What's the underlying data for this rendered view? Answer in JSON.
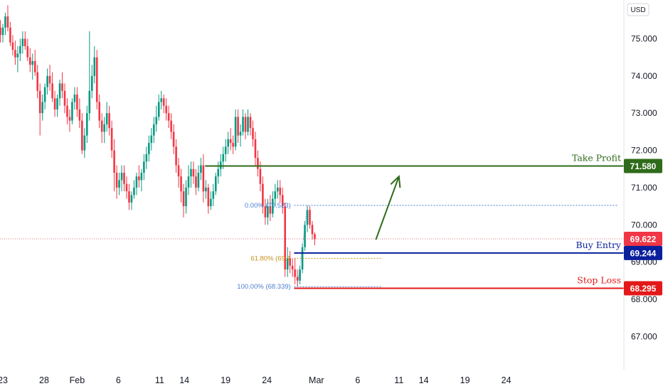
{
  "chart_data": {
    "type": "candlestick",
    "currency": "USD",
    "ylim": [
      66.4,
      75.9
    ],
    "y_ticks": [
      "75.000",
      "74.000",
      "73.000",
      "72.000",
      "71.000",
      "70.000",
      "69.000",
      "68.000",
      "67.000"
    ],
    "x_ticks": [
      "23",
      "28",
      "Feb",
      "6",
      "11",
      "14",
      "19",
      "24",
      "Mar",
      "6",
      "11",
      "14",
      "19",
      "24"
    ],
    "x_tick_positions_in_days": [
      0,
      5,
      9,
      14,
      19,
      22,
      27,
      32,
      38,
      43,
      48,
      51,
      56,
      61
    ],
    "last_price": "69.622",
    "levels": [
      {
        "name": "Take Profit",
        "value": 71.58,
        "badge": "71.580",
        "color": "#2e6b1a",
        "start_day": 24.5
      },
      {
        "name": "Buy Entry",
        "value": 69.244,
        "badge": "69.244",
        "color": "#0a1f9c",
        "start_day": 35.3
      },
      {
        "name": "Stop Loss",
        "value": 68.295,
        "badge": "68.295",
        "color": "#e31919",
        "start_day": 35.3
      }
    ],
    "fibonacci": [
      {
        "label": "0.00% (70.523)",
        "value": 70.523,
        "color": "#4a7fd0"
      },
      {
        "label": "61.80% (69.1",
        "value": 69.1,
        "color": "#c8911a"
      },
      {
        "label": "100.00% (68.339)",
        "value": 68.339,
        "color": "#4a7fd0"
      }
    ],
    "arrow": {
      "from_day": 45.2,
      "from_value": 69.6,
      "to_day": 48.0,
      "to_value": 71.3,
      "color": "#2e6b1a"
    },
    "candles": [
      [
        -0.9,
        75.5,
        75.85,
        75.3,
        75.65
      ],
      [
        -0.6,
        75.6,
        75.8,
        75.2,
        75.3
      ],
      [
        -0.3,
        75.3,
        75.5,
        74.9,
        75.1
      ],
      [
        0.0,
        75.1,
        75.4,
        74.9,
        75.3
      ],
      [
        0.3,
        75.3,
        75.7,
        75.1,
        75.6
      ],
      [
        0.6,
        75.6,
        75.9,
        75.2,
        75.3
      ],
      [
        0.9,
        75.3,
        75.45,
        74.8,
        74.9
      ],
      [
        1.2,
        74.9,
        75.1,
        74.55,
        74.7
      ],
      [
        1.5,
        74.7,
        74.95,
        74.3,
        74.5
      ],
      [
        1.8,
        74.5,
        74.8,
        74.1,
        74.6
      ],
      [
        2.1,
        74.6,
        75.0,
        74.4,
        74.8
      ],
      [
        2.4,
        74.8,
        75.2,
        74.6,
        75.0
      ],
      [
        2.7,
        75.0,
        75.2,
        74.7,
        74.8
      ],
      [
        3.0,
        74.8,
        75.0,
        74.4,
        74.5
      ],
      [
        3.3,
        74.5,
        74.75,
        74.1,
        74.3
      ],
      [
        3.6,
        74.3,
        74.6,
        73.9,
        74.4
      ],
      [
        3.9,
        74.4,
        74.7,
        74.0,
        74.1
      ],
      [
        4.2,
        74.1,
        74.3,
        73.4,
        73.6
      ],
      [
        4.5,
        73.6,
        73.8,
        72.4,
        73.0
      ],
      [
        4.8,
        73.0,
        73.5,
        72.8,
        73.3
      ],
      [
        5.1,
        73.3,
        73.8,
        73.1,
        73.7
      ],
      [
        5.4,
        73.7,
        74.2,
        73.5,
        74.0
      ],
      [
        5.7,
        74.0,
        74.3,
        73.6,
        73.8
      ],
      [
        6.0,
        73.8,
        74.1,
        73.3,
        73.4
      ],
      [
        6.3,
        73.4,
        73.6,
        72.9,
        73.1
      ],
      [
        6.6,
        73.1,
        73.5,
        72.9,
        73.4
      ],
      [
        6.9,
        73.4,
        73.9,
        73.2,
        73.8
      ],
      [
        7.2,
        73.8,
        74.1,
        73.4,
        73.6
      ],
      [
        7.5,
        73.6,
        73.8,
        73.0,
        73.2
      ],
      [
        7.8,
        73.2,
        73.4,
        72.7,
        72.9
      ],
      [
        8.1,
        72.9,
        73.1,
        72.5,
        72.8
      ],
      [
        8.4,
        72.8,
        73.4,
        72.7,
        73.3
      ],
      [
        8.7,
        73.3,
        73.7,
        73.1,
        73.5
      ],
      [
        9.0,
        73.5,
        73.7,
        72.9,
        73.1
      ],
      [
        9.3,
        73.1,
        73.4,
        72.6,
        72.8
      ],
      [
        9.6,
        72.8,
        73.0,
        71.9,
        72.0
      ],
      [
        9.9,
        72.0,
        72.6,
        71.8,
        72.4
      ],
      [
        10.2,
        72.4,
        73.2,
        72.2,
        73.0
      ],
      [
        10.5,
        73.0,
        75.2,
        72.8,
        73.6
      ],
      [
        10.8,
        73.6,
        74.3,
        73.4,
        74.0
      ],
      [
        11.1,
        74.0,
        74.8,
        73.8,
        74.5
      ],
      [
        11.4,
        74.5,
        74.7,
        73.1,
        73.3
      ],
      [
        11.7,
        73.3,
        73.5,
        72.6,
        72.8
      ],
      [
        12.0,
        72.8,
        73.0,
        72.2,
        72.5
      ],
      [
        12.3,
        72.5,
        72.9,
        72.2,
        72.7
      ],
      [
        12.6,
        72.7,
        73.3,
        72.5,
        73.0
      ],
      [
        12.9,
        73.0,
        73.2,
        72.4,
        72.6
      ],
      [
        13.2,
        72.6,
        72.8,
        71.8,
        72.0
      ],
      [
        13.5,
        72.0,
        72.3,
        70.9,
        71.4
      ],
      [
        13.8,
        71.4,
        71.6,
        70.7,
        71.0
      ],
      [
        14.1,
        71.0,
        71.4,
        70.8,
        71.2
      ],
      [
        14.4,
        71.2,
        71.6,
        70.9,
        71.4
      ],
      [
        14.7,
        71.4,
        71.6,
        70.9,
        71.1
      ],
      [
        15.0,
        71.1,
        71.3,
        70.7,
        70.9
      ],
      [
        15.3,
        70.9,
        71.1,
        70.4,
        70.6
      ],
      [
        15.6,
        70.6,
        70.9,
        70.4,
        70.8
      ],
      [
        15.9,
        70.8,
        71.2,
        70.7,
        71.0
      ],
      [
        16.2,
        71.0,
        71.4,
        70.8,
        71.3
      ],
      [
        16.5,
        71.3,
        71.6,
        71.0,
        71.2
      ],
      [
        16.8,
        71.2,
        71.5,
        70.9,
        71.4
      ],
      [
        17.1,
        71.4,
        71.9,
        71.2,
        71.7
      ],
      [
        17.4,
        71.7,
        72.1,
        71.5,
        71.9
      ],
      [
        17.7,
        71.9,
        72.4,
        71.7,
        72.2
      ],
      [
        18.0,
        72.2,
        72.6,
        72.0,
        72.4
      ],
      [
        18.3,
        72.4,
        72.9,
        72.2,
        72.7
      ],
      [
        18.6,
        72.7,
        73.2,
        72.5,
        72.9
      ],
      [
        18.9,
        72.9,
        73.5,
        72.8,
        73.3
      ],
      [
        19.2,
        73.3,
        73.6,
        73.1,
        73.4
      ],
      [
        19.5,
        73.4,
        73.5,
        73.0,
        73.2
      ],
      [
        19.8,
        73.2,
        73.4,
        72.8,
        73.0
      ],
      [
        20.1,
        73.0,
        73.2,
        72.6,
        72.8
      ],
      [
        20.4,
        72.8,
        73.0,
        72.3,
        72.5
      ],
      [
        20.7,
        72.5,
        72.7,
        71.9,
        72.1
      ],
      [
        21.0,
        72.1,
        72.3,
        71.4,
        71.6
      ],
      [
        21.3,
        71.6,
        71.8,
        71.0,
        71.3
      ],
      [
        21.6,
        71.3,
        71.5,
        70.6,
        70.9
      ],
      [
        21.9,
        70.9,
        71.1,
        70.2,
        70.5
      ],
      [
        22.2,
        70.5,
        71.2,
        70.3,
        71.0
      ],
      [
        22.5,
        71.0,
        71.6,
        70.8,
        71.3
      ],
      [
        22.8,
        71.3,
        71.7,
        71.0,
        71.5
      ],
      [
        23.1,
        71.5,
        71.7,
        71.1,
        71.3
      ],
      [
        23.4,
        71.3,
        71.5,
        70.8,
        71.0
      ],
      [
        23.7,
        71.0,
        71.6,
        70.9,
        71.4
      ],
      [
        24.0,
        71.4,
        71.8,
        71.2,
        71.6
      ],
      [
        24.3,
        71.6,
        71.9,
        70.6,
        70.9
      ],
      [
        24.6,
        70.9,
        71.2,
        70.7,
        71.0
      ],
      [
        24.9,
        71.0,
        71.1,
        70.3,
        70.5
      ],
      [
        25.2,
        70.5,
        70.9,
        70.4,
        70.7
      ],
      [
        25.5,
        70.7,
        71.1,
        70.5,
        70.9
      ],
      [
        25.8,
        70.9,
        71.4,
        70.8,
        71.3
      ],
      [
        26.1,
        71.3,
        71.7,
        71.1,
        71.5
      ],
      [
        26.4,
        71.5,
        71.9,
        71.3,
        71.7
      ],
      [
        26.7,
        71.7,
        72.1,
        71.5,
        71.9
      ],
      [
        27.0,
        71.9,
        72.3,
        71.7,
        72.1
      ],
      [
        27.3,
        72.1,
        72.5,
        71.9,
        72.3
      ],
      [
        27.6,
        72.3,
        72.6,
        72.0,
        72.2
      ],
      [
        27.9,
        72.2,
        72.4,
        71.9,
        72.1
      ],
      [
        28.2,
        72.1,
        73.1,
        72.0,
        72.9
      ],
      [
        28.5,
        72.9,
        73.1,
        72.2,
        72.4
      ],
      [
        28.8,
        72.4,
        72.7,
        72.1,
        72.5
      ],
      [
        29.1,
        72.5,
        73.1,
        72.4,
        72.9
      ],
      [
        29.4,
        72.9,
        73.0,
        72.3,
        72.5
      ],
      [
        29.7,
        72.5,
        73.1,
        72.4,
        72.9
      ],
      [
        30.0,
        72.9,
        73.0,
        72.4,
        72.6
      ],
      [
        30.3,
        72.6,
        72.8,
        72.1,
        72.3
      ],
      [
        30.6,
        72.3,
        72.5,
        71.6,
        71.8
      ],
      [
        30.9,
        71.8,
        72.0,
        71.3,
        71.5
      ],
      [
        31.2,
        71.5,
        71.7,
        70.9,
        71.1
      ],
      [
        31.5,
        71.1,
        71.3,
        70.3,
        70.5
      ],
      [
        31.8,
        70.5,
        70.7,
        70.0,
        70.2
      ],
      [
        32.1,
        70.2,
        70.7,
        70.0,
        70.5
      ],
      [
        32.4,
        70.5,
        70.8,
        70.1,
        70.3
      ],
      [
        32.7,
        70.3,
        70.9,
        70.2,
        70.7
      ],
      [
        33.0,
        70.7,
        71.1,
        70.5,
        70.9
      ],
      [
        33.3,
        70.9,
        71.2,
        70.7,
        71.0
      ],
      [
        33.6,
        71.0,
        71.2,
        70.6,
        70.8
      ],
      [
        33.9,
        70.8,
        71.0,
        70.3,
        70.5
      ],
      [
        34.2,
        70.5,
        70.6,
        68.6,
        68.8
      ],
      [
        34.5,
        68.8,
        69.4,
        68.6,
        69.1
      ],
      [
        34.8,
        69.1,
        69.3,
        68.7,
        68.9
      ],
      [
        35.1,
        68.9,
        69.1,
        68.6,
        68.8
      ],
      [
        35.4,
        68.8,
        69.1,
        68.4,
        68.6
      ],
      [
        35.7,
        68.6,
        68.8,
        68.34,
        68.5
      ],
      [
        36.0,
        68.5,
        68.9,
        68.4,
        68.8
      ],
      [
        36.3,
        68.8,
        69.5,
        68.7,
        69.4
      ],
      [
        36.6,
        69.4,
        70.1,
        69.3,
        70.0
      ],
      [
        36.9,
        70.0,
        70.52,
        69.8,
        70.4
      ],
      [
        37.2,
        70.4,
        70.5,
        69.9,
        70.0
      ],
      [
        37.5,
        70.0,
        70.1,
        69.6,
        69.75
      ],
      [
        37.8,
        69.75,
        69.8,
        69.45,
        69.62
      ]
    ]
  }
}
